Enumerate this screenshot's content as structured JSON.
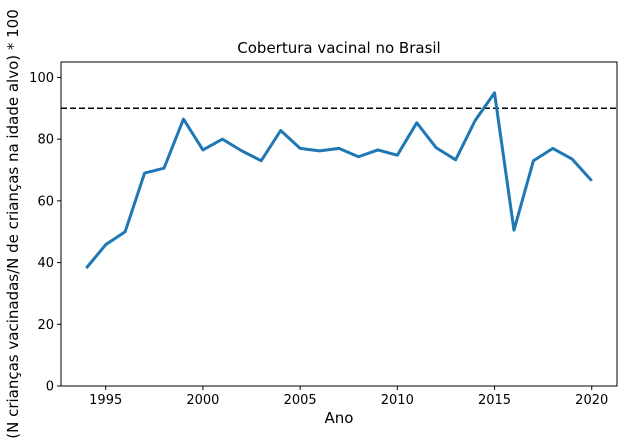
{
  "chart_data": {
    "type": "line",
    "title": "Cobertura vacinal no Brasil",
    "xlabel": "Ano",
    "ylabel": "(N crianças vacinadas/N de crianças na idade alvo) * 100",
    "xlim": [
      1992.7,
      2021.3
    ],
    "ylim": [
      0,
      105
    ],
    "xticks": [
      1995,
      2000,
      2005,
      2010,
      2015,
      2020
    ],
    "yticks": [
      0,
      20,
      40,
      60,
      80,
      100
    ],
    "grid": false,
    "reference_line": {
      "y": 90,
      "style": "dashed",
      "color": "#000000"
    },
    "series": [
      {
        "color": "#1f77b4",
        "x": [
          1994,
          1995,
          1996,
          1997,
          1998,
          1999,
          2000,
          2001,
          2002,
          2003,
          2004,
          2005,
          2006,
          2007,
          2008,
          2009,
          2010,
          2011,
          2012,
          2013,
          2014,
          2015,
          2016,
          2017,
          2018,
          2019,
          2020
        ],
        "y": [
          38.2,
          45.8,
          50.0,
          69.0,
          70.6,
          86.5,
          76.5,
          80.0,
          76.2,
          73.0,
          82.8,
          77.0,
          76.2,
          77.0,
          74.3,
          76.5,
          74.8,
          85.3,
          77.2,
          73.3,
          86.0,
          95.0,
          50.5,
          73.0,
          77.0,
          73.5,
          66.5
        ]
      }
    ]
  }
}
